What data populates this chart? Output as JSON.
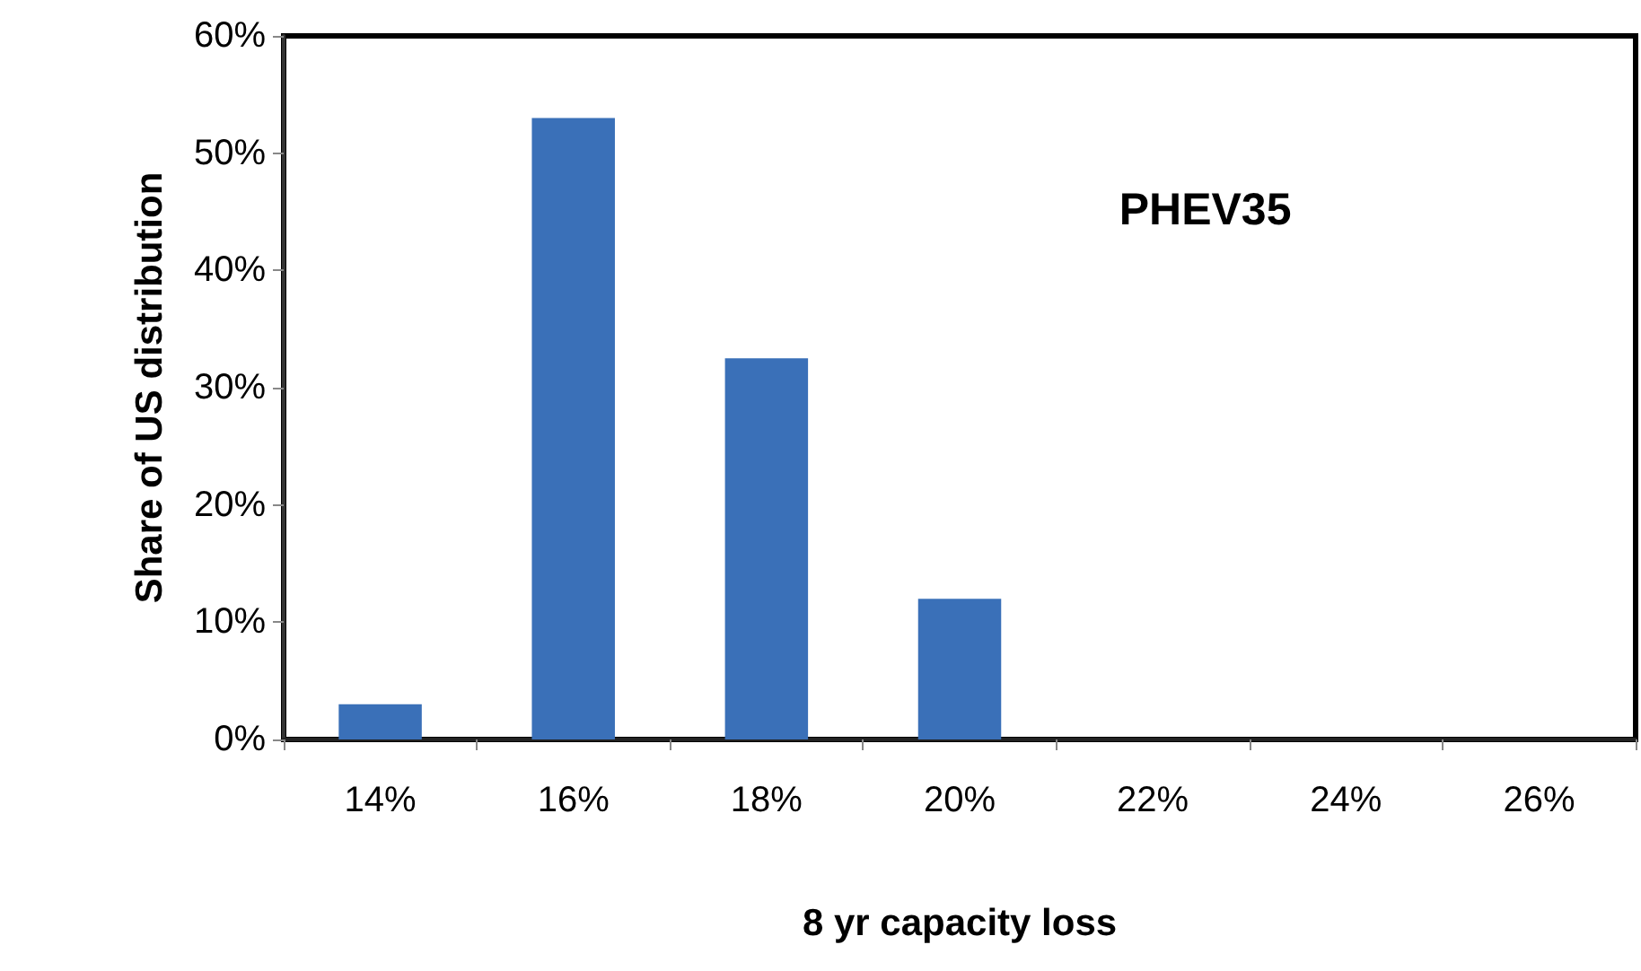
{
  "chart_data": {
    "type": "bar",
    "xlabel": "8 yr capacity loss",
    "ylabel": "Share of US distribution",
    "annotations": [
      "PHEV35"
    ],
    "categories": [
      "14%",
      "16%",
      "18%",
      "20%",
      "22%",
      "24%",
      "26%"
    ],
    "values": [
      3,
      53,
      32.5,
      12,
      0,
      0,
      0
    ],
    "color": "#3a70b8",
    "ylim": [
      0,
      60
    ],
    "yticks": [
      {
        "value": 0,
        "label": "0%"
      },
      {
        "value": 10,
        "label": "10%"
      },
      {
        "value": 20,
        "label": "20%"
      },
      {
        "value": 30,
        "label": "30%"
      },
      {
        "value": 40,
        "label": "40%"
      },
      {
        "value": 50,
        "label": "50%"
      },
      {
        "value": 60,
        "label": "60%"
      }
    ]
  }
}
